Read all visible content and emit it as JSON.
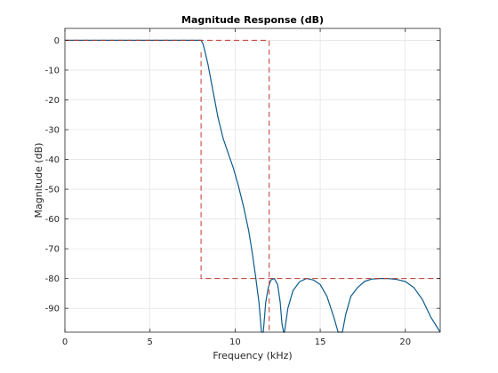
{
  "chart_data": {
    "type": "line",
    "title": "Magnitude Response (dB)",
    "xlabel": "Frequency (kHz)",
    "ylabel": "Magnitude (dB)",
    "xlim": [
      0,
      22.05
    ],
    "ylim": [
      -98,
      4
    ],
    "xticks": [
      0,
      5,
      10,
      15,
      20
    ],
    "yticks": [
      0,
      -10,
      -20,
      -30,
      -40,
      -50,
      -60,
      -70,
      -80,
      -90
    ],
    "grid": true,
    "colors": {
      "response": "#0b5c8c",
      "mask": "#c0392b",
      "grid": "#dcdcdc",
      "axes": "#262626"
    },
    "series": [
      {
        "role": "response",
        "x": [
          0,
          7.9,
          8.0,
          8.1,
          8.2,
          8.4,
          8.6,
          8.8,
          9.0,
          9.3,
          9.6,
          9.9,
          10.2,
          10.5,
          10.8,
          11.0,
          11.2,
          11.4,
          11.55,
          11.62,
          11.65,
          11.7,
          11.8,
          11.95,
          12.1,
          12.3,
          12.5,
          12.65,
          12.75,
          12.85,
          12.87,
          12.9,
          13.1,
          13.4,
          13.8,
          14.2,
          14.6,
          15.0,
          15.4,
          15.8,
          16.05,
          16.15,
          16.2,
          16.25,
          16.3,
          16.5,
          16.8,
          17.2,
          17.6,
          18.0,
          18.5,
          19.0,
          19.5,
          20.0,
          20.5,
          21.0,
          21.5,
          22.05
        ],
        "y": [
          0,
          0,
          0,
          -1,
          -3,
          -8,
          -14,
          -20,
          -26,
          -33,
          -38,
          -43,
          -49,
          -56,
          -64,
          -71,
          -79,
          -88,
          -98,
          -98,
          -98,
          -95,
          -88,
          -83,
          -80.5,
          -80,
          -82,
          -88,
          -95,
          -98,
          -98,
          -98,
          -90,
          -84,
          -81,
          -80,
          -80.5,
          -82,
          -86,
          -93,
          -98,
          -98,
          -98,
          -98,
          -98,
          -92,
          -86,
          -83,
          -81,
          -80.2,
          -80,
          -80,
          -80.3,
          -81,
          -83,
          -87,
          -93,
          -98
        ]
      },
      {
        "role": "mask-passband",
        "x": [
          0,
          12.0,
          12.0
        ],
        "y": [
          0,
          0,
          -98
        ]
      },
      {
        "role": "mask-stopband",
        "x": [
          8.0,
          8.0,
          22.05
        ],
        "y": [
          -4,
          -80,
          -80
        ]
      }
    ]
  }
}
